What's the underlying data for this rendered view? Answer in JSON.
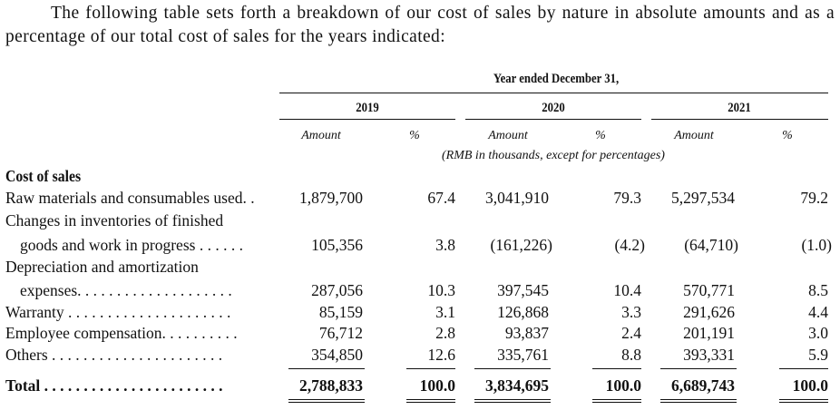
{
  "intro": "The following table sets forth a breakdown of our cost of sales by nature in absolute amounts and as a percentage of our total cost of sales for the years indicated:",
  "header": {
    "period": "Year ended December 31,",
    "years": [
      "2019",
      "2020",
      "2021"
    ],
    "amount": "Amount",
    "pct": "%",
    "unit_note": "(RMB in thousands, except for percentages)"
  },
  "section": "Cost of sales",
  "rows": [
    {
      "label": "Raw materials and consumables used. .",
      "v": [
        "1,879,700",
        "67.4",
        "3,041,910",
        "79.3",
        "5,297,534",
        "79.2"
      ]
    },
    {
      "label_1": "Changes in inventories of finished",
      "label": "goods and work in progress . . . . . .",
      "v": [
        "105,356",
        "3.8",
        "(161,226)",
        "(4.2)",
        "(64,710)",
        "(1.0)"
      ]
    },
    {
      "label_1": "Depreciation and amortization",
      "label": "expenses. . . . . . . . . . . . . . . . . . . .",
      "v": [
        "287,056",
        "10.3",
        "397,545",
        "10.4",
        "570,771",
        "8.5"
      ]
    },
    {
      "label": "Warranty . . . . . . . . . . . . . . . . . . . . .",
      "v": [
        "85,159",
        "3.1",
        "126,868",
        "3.3",
        "291,626",
        "4.4"
      ]
    },
    {
      "label": "Employee compensation. . . . . . . . . .",
      "v": [
        "76,712",
        "2.8",
        "93,837",
        "2.4",
        "201,191",
        "3.0"
      ]
    },
    {
      "label": "Others . . . . . . . . . . . . . . . . . . . . . .",
      "v": [
        "354,850",
        "12.6",
        "335,761",
        "8.8",
        "393,331",
        "5.9"
      ]
    }
  ],
  "total": {
    "label": "Total . . . . . . . . . . . . . . . . . . . . . . .",
    "v": [
      "2,788,833",
      "100.0",
      "3,834,695",
      "100.0",
      "6,689,743",
      "100.0"
    ]
  }
}
